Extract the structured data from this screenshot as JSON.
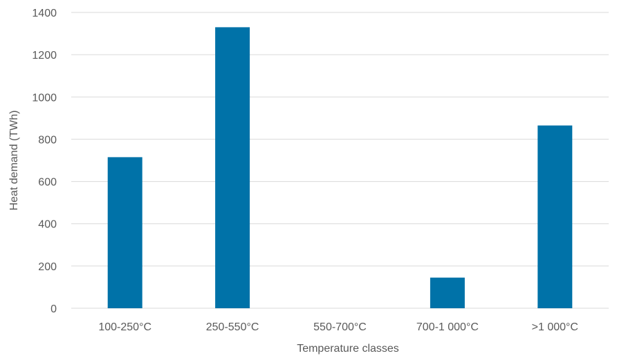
{
  "chart_data": {
    "type": "bar",
    "categories": [
      "100-250°C",
      "250-550°C",
      "550-700°C",
      "700-1 000°C",
      ">1 000°C"
    ],
    "values": [
      715,
      1330,
      0,
      145,
      865
    ],
    "xlabel": "Temperature classes",
    "ylabel": "Heat demand (TWh)",
    "ylim": [
      0,
      1400
    ],
    "yticks": [
      0,
      200,
      400,
      600,
      800,
      1000,
      1200,
      1400
    ],
    "grid": true,
    "legend": "none",
    "bar_color": "#0072a8"
  }
}
